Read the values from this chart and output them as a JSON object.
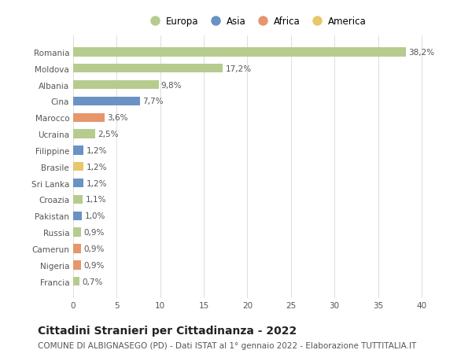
{
  "countries": [
    "Francia",
    "Nigeria",
    "Camerun",
    "Russia",
    "Pakistan",
    "Croazia",
    "Sri Lanka",
    "Brasile",
    "Filippine",
    "Ucraina",
    "Marocco",
    "Cina",
    "Albania",
    "Moldova",
    "Romania"
  ],
  "values": [
    0.7,
    0.9,
    0.9,
    0.9,
    1.0,
    1.1,
    1.2,
    1.2,
    1.2,
    2.5,
    3.6,
    7.7,
    9.8,
    17.2,
    38.2
  ],
  "labels": [
    "0,7%",
    "0,9%",
    "0,9%",
    "0,9%",
    "1,0%",
    "1,1%",
    "1,2%",
    "1,2%",
    "1,2%",
    "2,5%",
    "3,6%",
    "7,7%",
    "9,8%",
    "17,2%",
    "38,2%"
  ],
  "colors": [
    "#b5cc8e",
    "#e8956d",
    "#e8956d",
    "#b5cc8e",
    "#6a92c4",
    "#b5cc8e",
    "#6a92c4",
    "#e8c76a",
    "#6a92c4",
    "#b5cc8e",
    "#e8956d",
    "#6a92c4",
    "#b5cc8e",
    "#b5cc8e",
    "#b5cc8e"
  ],
  "legend_labels": [
    "Europa",
    "Asia",
    "Africa",
    "America"
  ],
  "legend_colors": [
    "#b5cc8e",
    "#6a92c4",
    "#e8956d",
    "#e8c76a"
  ],
  "title": "Cittadini Stranieri per Cittadinanza - 2022",
  "subtitle": "COMUNE DI ALBIGNASEGO (PD) - Dati ISTAT al 1° gennaio 2022 - Elaborazione TUTTITALIA.IT",
  "xlim": [
    0,
    42
  ],
  "xticks": [
    0,
    5,
    10,
    15,
    20,
    25,
    30,
    35,
    40
  ],
  "bg_color": "#ffffff",
  "grid_color": "#dddddd",
  "bar_height": 0.55,
  "title_fontsize": 10,
  "subtitle_fontsize": 7.5,
  "label_fontsize": 7.5,
  "tick_fontsize": 7.5,
  "legend_fontsize": 8.5
}
